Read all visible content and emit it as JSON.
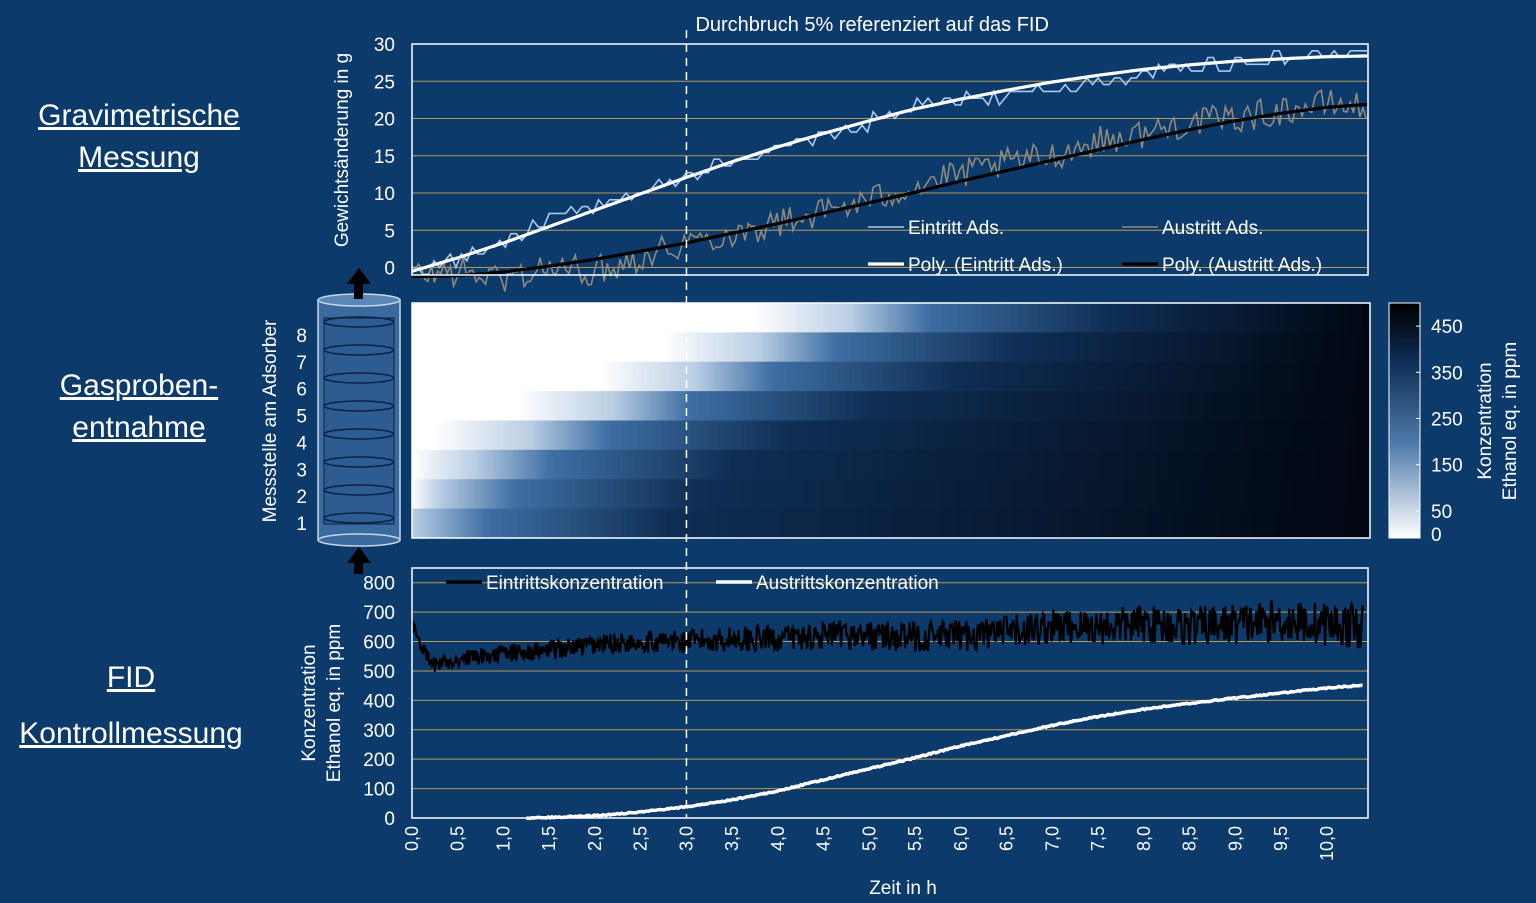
{
  "side_labels": {
    "gravimetric": [
      "Gravimetrische",
      "Messung"
    ],
    "gas_sampling": [
      "Gasproben-",
      "entnahme"
    ],
    "fid": [
      "FID",
      "Kontrollmessung"
    ]
  },
  "annotation": "Durchbruch 5% referenziert auf das FID",
  "breakthrough_time_h": 3.0,
  "x_axis": {
    "label": "Zeit in h",
    "min": 0,
    "max": 10.45,
    "ticks": [
      "0,0",
      "0,5",
      "1,0",
      "1,5",
      "2,0",
      "2,5",
      "3,0",
      "3,5",
      "4,0",
      "4,5",
      "5,0",
      "5,5",
      "6,0",
      "6,5",
      "7,0",
      "7,5",
      "8,0",
      "8,5",
      "9,0",
      "9,5",
      "10,0"
    ]
  },
  "colors": {
    "background": "#0b3a6b",
    "grid": "#b79a5a",
    "inlet_raw": "#a9c8ee",
    "outlet_raw": "#8c8a7d",
    "poly_inlet": "#ffffff",
    "poly_outlet": "#000000",
    "fid_inlet": "#000000",
    "fid_outlet": "#ffffff",
    "cylinder": "#3a6a9e"
  },
  "chart_data": [
    {
      "type": "line",
      "panel": "gravimetric",
      "ylabel": "Gewichtsänderung in g",
      "ylim": [
        -1,
        30
      ],
      "yticks": [
        "0",
        "5",
        "10",
        "15",
        "20",
        "25",
        "30"
      ],
      "grid": true,
      "legend": {
        "placement": "bottom-right",
        "entries": [
          "Eintritt Ads.",
          "Austritt Ads.",
          "Poly. (Eintritt Ads.)",
          "Poly. (Austritt Ads.)"
        ]
      },
      "series": [
        {
          "name": "Eintritt Ads.",
          "style": "raw",
          "color_key": "inlet_raw",
          "x": [
            0,
            0.5,
            1,
            1.5,
            2,
            2.5,
            3,
            3.5,
            4,
            4.5,
            5,
            5.5,
            6,
            6.5,
            7,
            7.5,
            8,
            8.5,
            9,
            9.5,
            10,
            10.45
          ],
          "values": [
            -0.5,
            1.2,
            3.5,
            6.5,
            8,
            10,
            12.5,
            14.5,
            16,
            17.5,
            19.5,
            21.5,
            22.5,
            23,
            24,
            25,
            26,
            27,
            27.5,
            28,
            28.5,
            28.5
          ]
        },
        {
          "name": "Austritt Ads.",
          "style": "raw",
          "color_key": "outlet_raw",
          "x": [
            0,
            0.5,
            1,
            1.5,
            2,
            2.5,
            3,
            3.5,
            4,
            4.5,
            5,
            5.5,
            6,
            6.5,
            7,
            7.5,
            8,
            8.5,
            9,
            9.5,
            10,
            10.45
          ],
          "values": [
            -1,
            -0.5,
            -1.5,
            0,
            -0.5,
            1.5,
            3.5,
            4.5,
            6,
            7.5,
            9,
            11,
            12.5,
            14,
            15,
            17,
            18,
            19.5,
            20,
            21,
            22,
            21.5
          ]
        },
        {
          "name": "Poly. (Eintritt Ads.)",
          "style": "fit",
          "color_key": "poly_inlet",
          "x": [
            0,
            0.5,
            1,
            1.5,
            2,
            2.5,
            3,
            3.5,
            4,
            4.5,
            5,
            5.5,
            6,
            6.5,
            7,
            7.5,
            8,
            8.5,
            9,
            9.5,
            10,
            10.45
          ],
          "values": [
            -0.5,
            1.3,
            3.3,
            5.5,
            7.7,
            9.9,
            12.1,
            14.2,
            16.2,
            18,
            19.7,
            21.3,
            22.6,
            23.8,
            24.9,
            25.8,
            26.6,
            27.2,
            27.7,
            28,
            28.3,
            28.4
          ]
        },
        {
          "name": "Poly. (Austritt Ads.)",
          "style": "fit",
          "color_key": "poly_outlet",
          "x": [
            0,
            0.5,
            1,
            1.5,
            2,
            2.5,
            3,
            3.5,
            4,
            4.5,
            5,
            5.5,
            6,
            6.5,
            7,
            7.5,
            8,
            8.5,
            9,
            9.5,
            10,
            10.45
          ],
          "values": [
            -1.2,
            -1.1,
            -0.6,
            0.2,
            1.1,
            2.2,
            3.3,
            4.6,
            5.9,
            7.3,
            8.7,
            10.1,
            11.6,
            13,
            14.4,
            15.8,
            17.2,
            18.5,
            19.7,
            20.7,
            21.5,
            21.9
          ]
        }
      ]
    },
    {
      "type": "heatmap",
      "panel": "gas_sampling",
      "ylabel": "Messstelle am Adsorber",
      "yticks": [
        "1",
        "2",
        "3",
        "4",
        "5",
        "6",
        "7",
        "8"
      ],
      "colorbar": {
        "label": [
          "Konzentration",
          "Ethanol eq. in ppm"
        ],
        "ticks": [
          "0",
          "50",
          "150",
          "250",
          "350",
          "450"
        ],
        "range": [
          0,
          500
        ],
        "low_color": "#ffffff",
        "high_color": "#000000"
      },
      "breakthrough_boundary": {
        "positions": [
          8,
          7,
          6,
          5,
          4,
          3,
          2,
          1
        ],
        "x_center_h": [
          5,
          4,
          3.3,
          2.4,
          1.5,
          0.9,
          0.5,
          0.2
        ]
      }
    },
    {
      "type": "line",
      "panel": "fid",
      "ylabel": [
        "Konzentration",
        "Ethanol eq. in ppm"
      ],
      "ylim": [
        0,
        850
      ],
      "yticks": [
        "0",
        "100",
        "200",
        "300",
        "400",
        "500",
        "600",
        "700",
        "800"
      ],
      "grid": true,
      "legend": {
        "placement": "top-left",
        "entries": [
          "Eintrittskonzentration",
          "Austrittskonzentration"
        ]
      },
      "series": [
        {
          "name": "Eintrittskonzentration",
          "color_key": "fid_inlet",
          "x": [
            0,
            0.2,
            0.5,
            1,
            1.5,
            2,
            2.5,
            3,
            3.5,
            4,
            4.5,
            5,
            5.5,
            6,
            6.5,
            7,
            7.5,
            8,
            8.5,
            9,
            9.5,
            10,
            10.4
          ],
          "values": [
            660,
            520,
            540,
            560,
            570,
            590,
            600,
            600,
            610,
            610,
            620,
            620,
            615,
            620,
            630,
            650,
            650,
            660,
            650,
            660,
            670,
            660,
            650
          ]
        },
        {
          "name": "Austrittskonzentration",
          "color_key": "fid_outlet",
          "x": [
            1.25,
            1.5,
            2,
            2.5,
            3,
            3.5,
            4,
            4.5,
            5,
            5.5,
            6,
            6.5,
            7,
            7.5,
            8,
            8.5,
            9,
            9.5,
            10,
            10.4
          ],
          "values": [
            0,
            2,
            8,
            20,
            38,
            62,
            92,
            130,
            168,
            205,
            245,
            280,
            315,
            345,
            370,
            390,
            408,
            425,
            442,
            452
          ]
        }
      ]
    }
  ]
}
